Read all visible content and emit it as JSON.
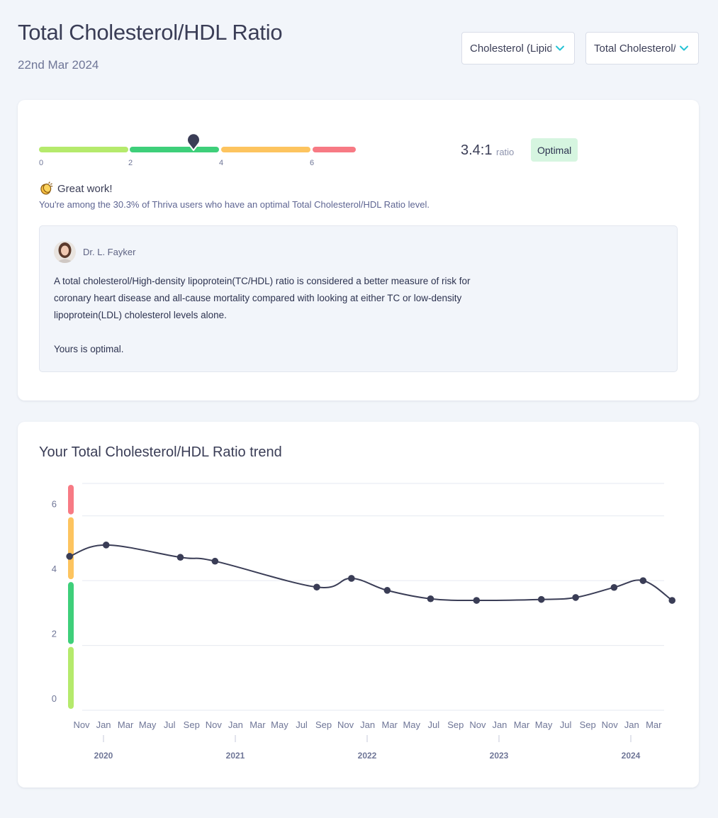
{
  "header": {
    "title": "Total Cholesterol/HDL Ratio",
    "date": "22nd Mar 2024",
    "category_select": "Cholesterol (Lipids)",
    "marker_select": "Total Cholesterol/HDL Ratio"
  },
  "range": {
    "ticks": [
      "0",
      "2",
      "4",
      "6"
    ],
    "current_value": 3.4,
    "colors": {
      "low": "#b5ea6c",
      "optimal": "#3ecf7a",
      "borderline": "#fdc45f",
      "high": "#f77a84"
    }
  },
  "result": {
    "value": "3.4:1",
    "unit": "ratio",
    "status": "Optimal"
  },
  "feedback": {
    "title": "Great work!",
    "subtitle": "You're among the 30.3% of Thriva users who have an optimal Total Cholesterol/HDL Ratio level."
  },
  "doctor_note": {
    "name": "Dr. L. Fayker",
    "paragraph1": "A total cholesterol/High-density lipoprotein(TC/HDL) ratio is considered a better measure of risk for coronary heart disease and all-cause mortality compared with looking at either TC or low-density lipoprotein(LDL) cholesterol levels alone.",
    "paragraph2": "Yours is optimal."
  },
  "trend": {
    "title": "Your Total Cholesterol/HDL Ratio trend"
  },
  "chart_data": {
    "type": "line",
    "title": "Your Total Cholesterol/HDL Ratio trend",
    "ylim": [
      0,
      7
    ],
    "yticks": [
      0,
      2,
      4,
      6
    ],
    "grid": true,
    "x_start": "2019-10-15",
    "x_end": "2024-04-15",
    "month_labels": [
      "Nov",
      "Jan",
      "Mar",
      "May",
      "Jul",
      "Sep",
      "Nov",
      "Jan",
      "Mar",
      "May",
      "Jul",
      "Sep",
      "Nov",
      "Jan",
      "Mar",
      "May",
      "Jul",
      "Sep",
      "Nov",
      "Jan",
      "Mar",
      "May",
      "Jul",
      "Sep",
      "Nov",
      "Jan",
      "Mar"
    ],
    "year_labels": [
      "2020",
      "2021",
      "2022",
      "2023",
      "2024"
    ],
    "points": [
      {
        "date": "2019-11-05",
        "value": 4.75
      },
      {
        "date": "2020-02-10",
        "value": 5.1
      },
      {
        "date": "2020-08-25",
        "value": 4.72
      },
      {
        "date": "2020-11-25",
        "value": 4.6
      },
      {
        "date": "2021-08-22",
        "value": 3.8
      },
      {
        "date": "2021-11-22",
        "value": 4.07
      },
      {
        "date": "2022-02-25",
        "value": 3.7
      },
      {
        "date": "2022-06-20",
        "value": 3.44
      },
      {
        "date": "2022-10-20",
        "value": 3.39
      },
      {
        "date": "2023-04-10",
        "value": 3.42
      },
      {
        "date": "2023-07-10",
        "value": 3.48
      },
      {
        "date": "2023-10-20",
        "value": 3.79
      },
      {
        "date": "2024-01-05",
        "value": 4.0
      },
      {
        "date": "2024-03-22",
        "value": 3.39
      }
    ],
    "bands": [
      {
        "from": 0,
        "to": 2,
        "color": "#b5ea6c"
      },
      {
        "from": 2,
        "to": 4,
        "color": "#3ecf7a"
      },
      {
        "from": 4,
        "to": 6,
        "color": "#fdc45f"
      },
      {
        "from": 6,
        "to": 7,
        "color": "#f77a84"
      }
    ],
    "line_color": "#3a3d56"
  }
}
